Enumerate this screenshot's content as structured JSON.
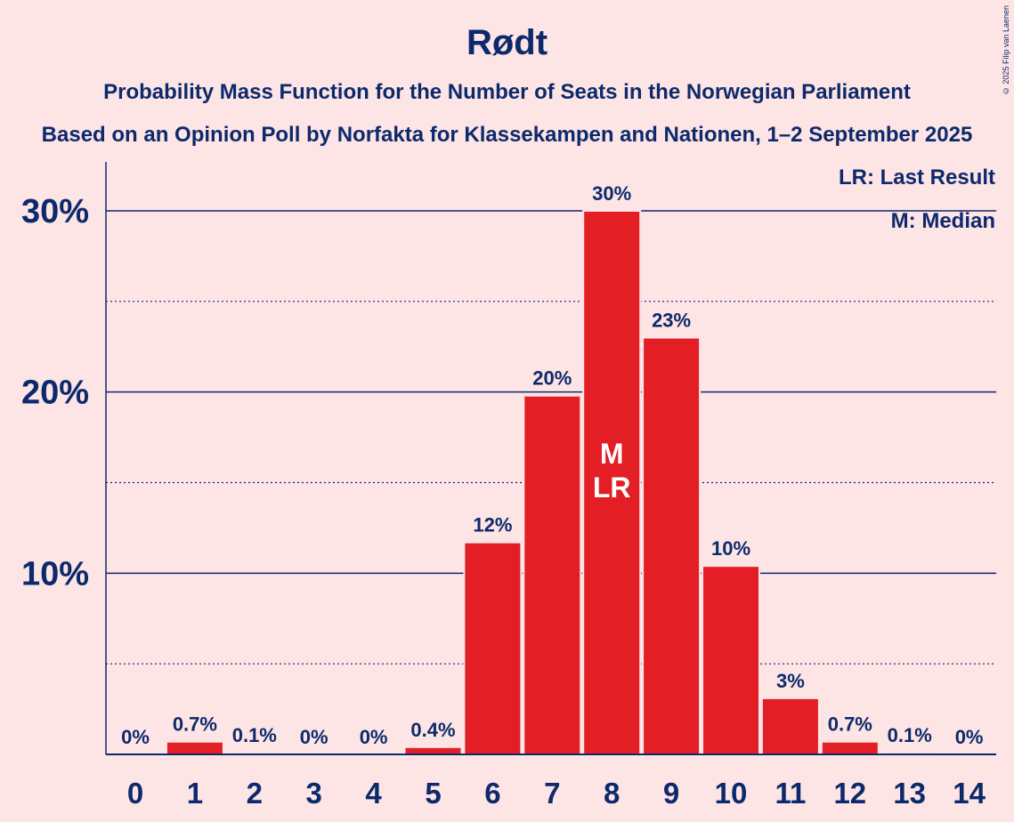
{
  "title": "Rødt",
  "subtitle": "Probability Mass Function for the Number of Seats in the Norwegian Parliament",
  "subtitle2": "Based on an Opinion Poll by Norfakta for Klassekampen and Nationen, 1–2 September 2025",
  "copyright": "© 2025 Filip van Laenen",
  "legend": {
    "last_result": "LR: Last Result",
    "median": "M: Median"
  },
  "colors": {
    "background": "#fde4e5",
    "bar": "#e31e24",
    "text": "#0c2a6b"
  },
  "chart_data": {
    "type": "bar",
    "categories": [
      "0",
      "1",
      "2",
      "3",
      "4",
      "5",
      "6",
      "7",
      "8",
      "9",
      "10",
      "11",
      "12",
      "13",
      "14"
    ],
    "values": [
      0,
      0.7,
      0.1,
      0,
      0,
      0.4,
      11.7,
      19.8,
      30,
      23,
      10.4,
      3.1,
      0.7,
      0.1,
      0
    ],
    "value_labels": [
      "0%",
      "0.7%",
      "0.1%",
      "0%",
      "0%",
      "0.4%",
      "12%",
      "20%",
      "30%",
      "23%",
      "10%",
      "3%",
      "0.7%",
      "0.1%",
      "0%"
    ],
    "ytick_labels": [
      "10%",
      "20%",
      "30%"
    ],
    "yticks": [
      10,
      20,
      30
    ],
    "minor_grid": [
      5,
      15,
      25
    ],
    "ylim": [
      0,
      32.7
    ],
    "markers": {
      "category": "8",
      "lines": [
        "M",
        "LR"
      ]
    }
  }
}
